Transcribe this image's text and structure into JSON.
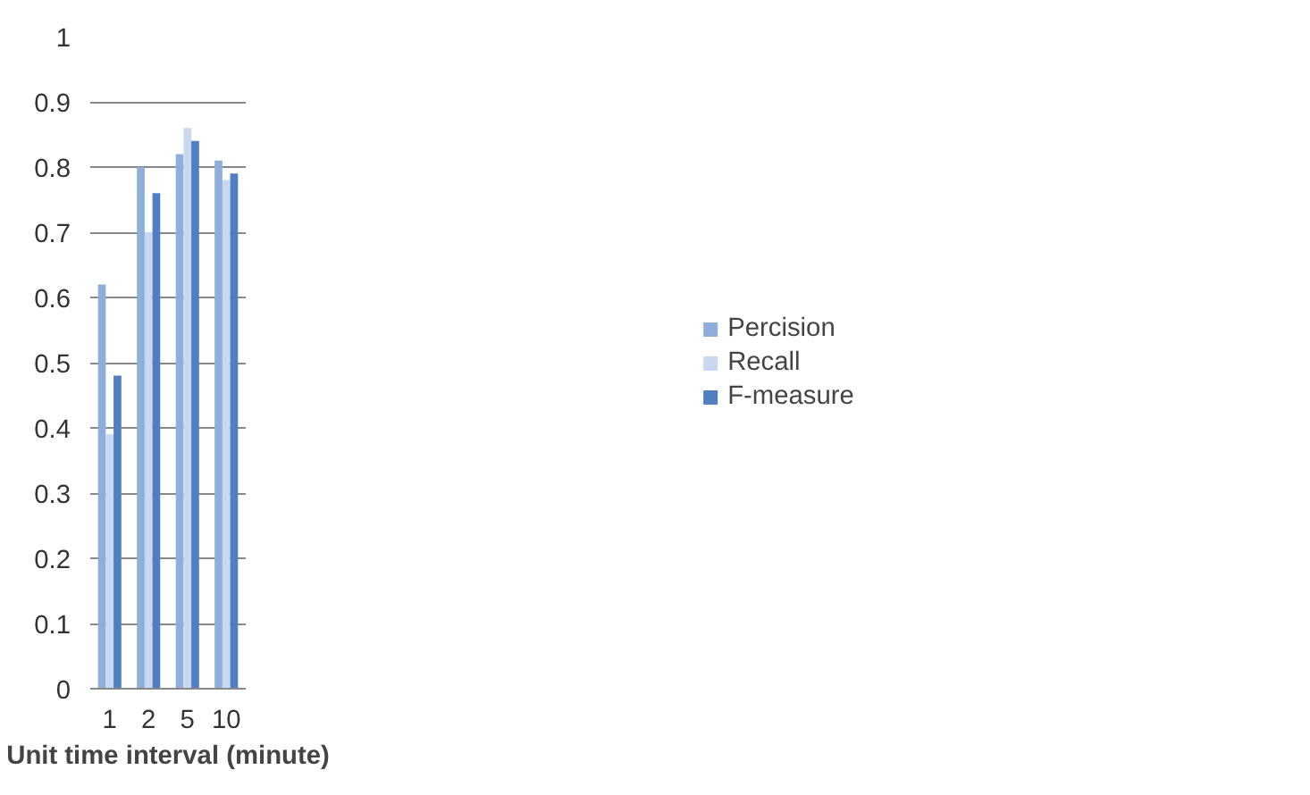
{
  "chart_data": {
    "type": "bar",
    "xlabel": "Unit time interval (minute)",
    "categories": [
      "1",
      "2",
      "5",
      "10"
    ],
    "series": [
      {
        "name": "Percision",
        "color": "#8eaedb",
        "values": [
          0.62,
          0.8,
          0.82,
          0.81
        ]
      },
      {
        "name": "Recall",
        "color": "#c9d8ef",
        "values": [
          0.39,
          0.7,
          0.86,
          0.78
        ]
      },
      {
        "name": "F-measure",
        "color": "#4f7fc0",
        "values": [
          0.48,
          0.76,
          0.84,
          0.79
        ]
      }
    ],
    "ylim": [
      0,
      1
    ],
    "yticks": [
      0,
      0.1,
      0.2,
      0.3,
      0.4,
      0.5,
      0.6,
      0.7,
      0.8,
      0.9,
      1
    ],
    "grid": "y",
    "legend": "right"
  }
}
